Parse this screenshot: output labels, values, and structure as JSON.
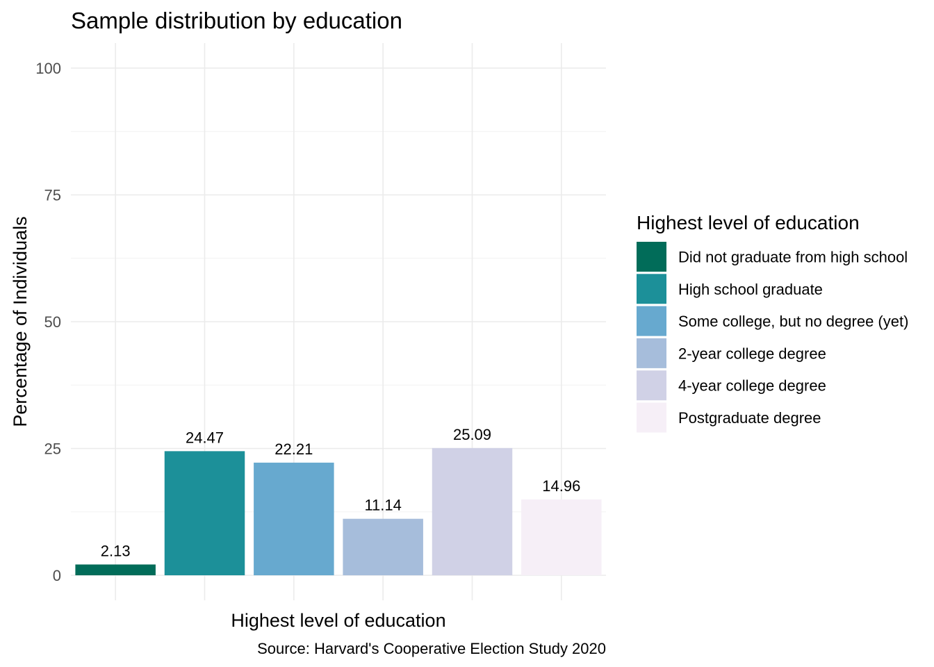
{
  "chart_data": {
    "type": "bar",
    "title": "Sample distribution by education",
    "xlabel": "Highest level of education",
    "ylabel": "Percentage of Individuals",
    "caption": "Source: Harvard's Cooperative Election Study 2020",
    "ylim": [
      0,
      100
    ],
    "yticks": [
      0,
      25,
      50,
      75,
      100
    ],
    "ytick_labels": [
      "0",
      "25",
      "50",
      "75",
      "100"
    ],
    "grid": true,
    "legend": {
      "title": "Highest level of education",
      "position": "right"
    },
    "categories": [
      "Did not graduate from high school",
      "High school graduate",
      "Some college, but no degree (yet)",
      "2-year college degree",
      "4-year college degree",
      "Postgraduate degree"
    ],
    "values": [
      2.13,
      24.47,
      22.21,
      11.14,
      25.09,
      14.96
    ],
    "value_labels": [
      "2.13",
      "24.47",
      "22.21",
      "11.14",
      "25.09",
      "14.96"
    ],
    "colors": [
      "#016c59",
      "#1c9099",
      "#67a9cf",
      "#a6bddb",
      "#d0d1e6",
      "#f6eff7"
    ]
  }
}
